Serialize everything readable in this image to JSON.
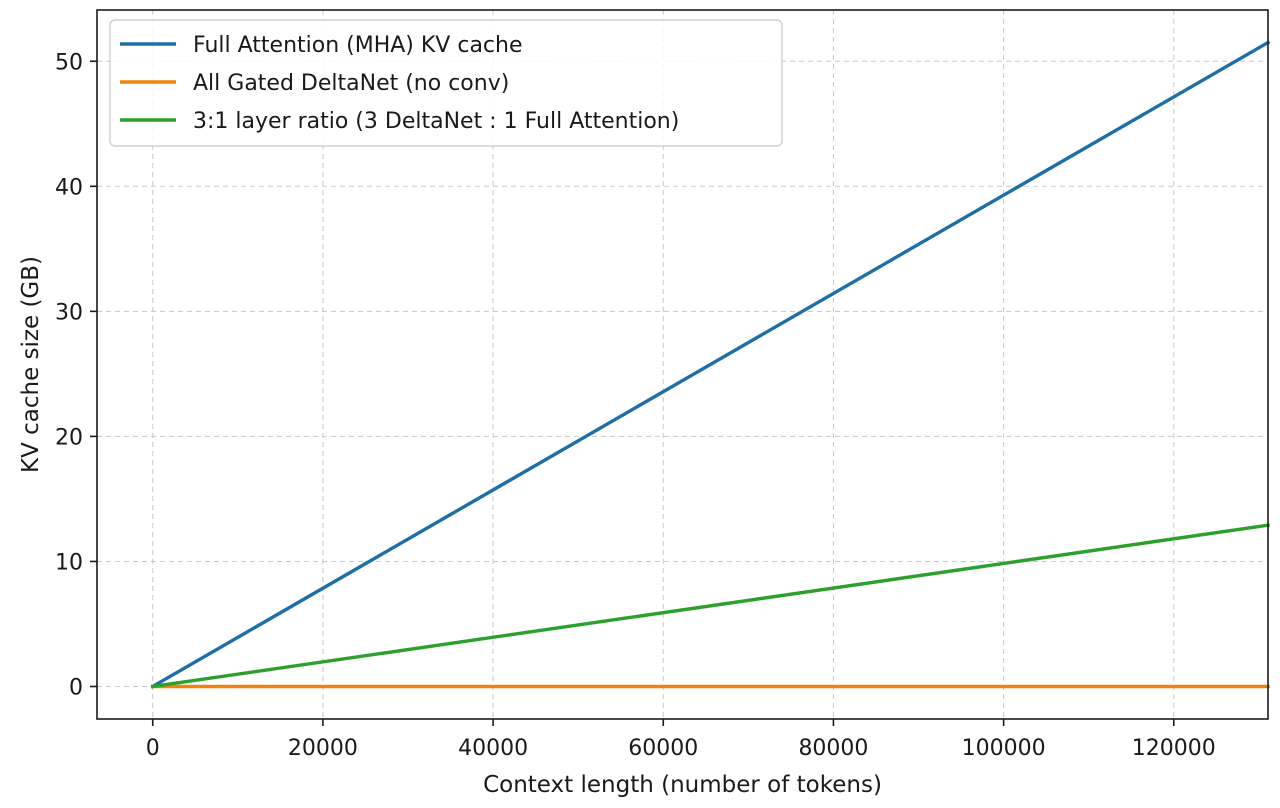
{
  "chart_data": {
    "type": "line",
    "title": "",
    "xlabel": "Context length (number of tokens)",
    "ylabel": "KV cache size (GB)",
    "xlim": [
      -6550,
      131072
    ],
    "ylim": [
      -2.6,
      54.1
    ],
    "xticks": [
      0,
      20000,
      40000,
      60000,
      80000,
      100000,
      120000
    ],
    "yticks": [
      0,
      10,
      20,
      30,
      40,
      50
    ],
    "grid": true,
    "legend_position": "upper-left",
    "series": [
      {
        "name": "Full Attention (MHA) KV cache",
        "color": "#1f6ea6",
        "x": [
          0,
          131072
        ],
        "y": [
          0,
          51.5
        ]
      },
      {
        "name": "All Gated DeltaNet (no conv)",
        "color": "#f0820f",
        "x": [
          0,
          131072
        ],
        "y": [
          0,
          0
        ]
      },
      {
        "name": "3:1 layer ratio (3 DeltaNet : 1 Full Attention)",
        "color": "#2ca02c",
        "x": [
          0,
          131072
        ],
        "y": [
          0,
          12.9
        ]
      }
    ]
  }
}
